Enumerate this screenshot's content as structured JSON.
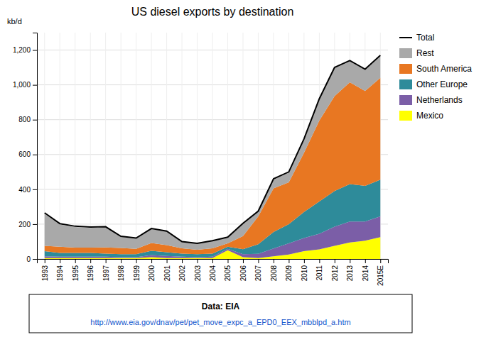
{
  "chart_data": {
    "type": "area",
    "title": "US diesel exports by destination",
    "y_label": "kb/d",
    "annotations": [
      "Data: EIA",
      "http://www.eia.gov/dnav/pet/pet_move_expc_a_EPD0_EEX_mbblpd_a.htm"
    ],
    "categories": [
      "1993",
      "1994",
      "1995",
      "1996",
      "1997",
      "1998",
      "1999",
      "2000",
      "2001",
      "2002",
      "2003",
      "2004",
      "2005",
      "2006",
      "2007",
      "2008",
      "2009",
      "2010",
      "2011",
      "2012",
      "2013",
      "2014",
      "2015E"
    ],
    "series": [
      {
        "name": "Mexico",
        "color": "#FFFF00",
        "values": [
          5,
          5,
          5,
          5,
          5,
          5,
          5,
          10,
          5,
          5,
          5,
          5,
          50,
          10,
          5,
          15,
          25,
          45,
          55,
          75,
          95,
          105,
          125
        ]
      },
      {
        "name": "Netherlands",
        "color": "#7B5EA7",
        "values": [
          10,
          8,
          8,
          8,
          8,
          5,
          5,
          12,
          12,
          8,
          5,
          8,
          8,
          18,
          25,
          45,
          65,
          75,
          90,
          110,
          120,
          110,
          120
        ]
      },
      {
        "name": "Other Europe",
        "color": "#2E8B9A",
        "values": [
          30,
          22,
          22,
          22,
          18,
          18,
          18,
          25,
          22,
          18,
          18,
          18,
          12,
          28,
          55,
          95,
          110,
          150,
          185,
          205,
          215,
          205,
          210
        ]
      },
      {
        "name": "South America",
        "color": "#E87722",
        "values": [
          30,
          35,
          30,
          30,
          35,
          35,
          30,
          45,
          40,
          30,
          25,
          30,
          20,
          75,
          160,
          250,
          240,
          340,
          465,
          545,
          585,
          545,
          585
        ]
      },
      {
        "name": "Rest",
        "color": "#A9A9A9",
        "values": [
          185,
          128,
          118,
          113,
          118,
          65,
          60,
          80,
          80,
          38,
          35,
          43,
          30,
          72,
          28,
          50,
          55,
          75,
          120,
          160,
          120,
          120,
          125
        ]
      },
      {
        "name": "Total",
        "type": "line",
        "color": "#000000",
        "values": [
          265,
          203,
          188,
          183,
          185,
          130,
          120,
          175,
          160,
          100,
          90,
          105,
          125,
          205,
          275,
          460,
          500,
          690,
          920,
          1100,
          1140,
          1090,
          1170
        ]
      }
    ],
    "stacked": true,
    "ylim": [
      0,
      1300
    ],
    "yticks": [
      0,
      200,
      400,
      600,
      800,
      {
        "value": 1000,
        "label": "1,000"
      },
      {
        "value": 1200,
        "label": "1,200"
      }
    ],
    "grid": true,
    "legend": "right"
  }
}
